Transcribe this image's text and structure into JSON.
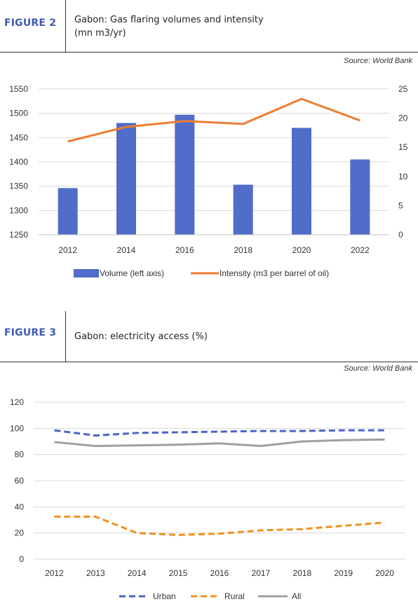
{
  "figure2": {
    "label": "FIGURE 2",
    "title_line1": "Gabon: Gas flaring volumes and intensity",
    "title_line2": "(mn m3/yr)",
    "source": "Source: World Bank"
  },
  "figure3": {
    "label": "FIGURE 3",
    "title": "Gabon: electricity access (%)",
    "source": "Source: World Bank"
  },
  "chart_data": [
    {
      "type": "bar",
      "categories": [
        "2012",
        "2014",
        "2016",
        "2018",
        "2020",
        "2022"
      ],
      "series": [
        {
          "name": "Volume (left axis)",
          "type": "bar",
          "axis": "left",
          "values": [
            1346,
            1480,
            1497,
            1353,
            1470,
            1405
          ],
          "color": "#4f6dc9"
        },
        {
          "name": "Intensity (m3 per barrel of oil)",
          "type": "line",
          "axis": "right",
          "values": [
            16.0,
            18.5,
            19.5,
            19.0,
            23.3,
            19.6
          ],
          "color": "#ed7d31"
        }
      ],
      "left_ticks": [
        "1550",
        "1500",
        "1450",
        "1400",
        "1350",
        "1300",
        "1250"
      ],
      "right_ticks": [
        "25",
        "20",
        "15",
        "10",
        "5",
        "0"
      ],
      "ylim_left": [
        1250,
        1550
      ],
      "ylim_right": [
        0,
        25
      ],
      "grid": true,
      "legend_position": "bottom"
    },
    {
      "type": "line",
      "categories": [
        "2012",
        "2013",
        "2014",
        "2015",
        "2016",
        "2017",
        "2018",
        "2019",
        "2020"
      ],
      "series": [
        {
          "name": "Urban",
          "values": [
            98.5,
            94.5,
            96.5,
            97,
            97.5,
            98,
            98,
            98.5,
            98.5
          ],
          "color": "#4a64c6",
          "dash": true
        },
        {
          "name": "Rural",
          "values": [
            32.5,
            32.5,
            20,
            18.5,
            19.5,
            22,
            23,
            25.5,
            28
          ],
          "color": "#f0921e",
          "dash": true
        },
        {
          "name": "All",
          "values": [
            89.5,
            86.5,
            87,
            87.5,
            88.5,
            86.5,
            90,
            91,
            91.5
          ],
          "color": "#a0a0a0",
          "dash": false
        }
      ],
      "y_ticks": [
        "120",
        "100",
        "80",
        "60",
        "40",
        "20",
        "0"
      ],
      "ylim": [
        0,
        120
      ],
      "grid": true,
      "legend_position": "bottom"
    }
  ]
}
